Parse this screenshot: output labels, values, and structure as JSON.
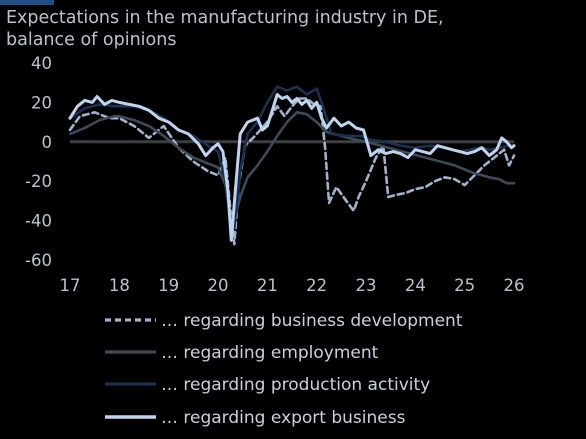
{
  "title_lines": [
    "Expectations in the manufacturing industry in DE,",
    "balance of opinions"
  ],
  "colors": {
    "background": "#000000",
    "zero_line": "#3a3f46",
    "text": "#b9c2ce",
    "accent": "#1f4f86"
  },
  "chart_data": {
    "type": "line",
    "title": "Expectations in the manufacturing industry in DE, balance of opinions",
    "xlabel": "",
    "ylabel": "",
    "xlim": [
      17,
      26
    ],
    "ylim": [
      -60,
      40
    ],
    "x_ticks": [
      "17",
      "18",
      "19",
      "20",
      "21",
      "22",
      "23",
      "24",
      "25",
      "26"
    ],
    "y_ticks": [
      "40",
      "20",
      "0",
      "-20",
      "-40",
      "-60"
    ],
    "grid": false,
    "legend_position": "bottom",
    "series": [
      {
        "name": "… regarding business development",
        "color": "#9fb3cc",
        "dash": "6 4",
        "width": 2.6,
        "x": [
          17.0,
          17.2,
          17.5,
          17.8,
          18.0,
          18.3,
          18.6,
          18.9,
          19.2,
          19.5,
          19.8,
          20.0,
          20.15,
          20.25,
          20.33,
          20.42,
          20.55,
          20.75,
          21.0,
          21.2,
          21.35,
          21.5,
          21.65,
          21.8,
          21.95,
          22.08,
          22.17,
          22.25,
          22.4,
          22.6,
          22.75,
          22.85,
          23.0,
          23.2,
          23.35,
          23.45,
          23.6,
          23.8,
          24.0,
          24.2,
          24.4,
          24.6,
          24.8,
          25.0,
          25.2,
          25.4,
          25.6,
          25.8,
          25.9,
          26.0
        ],
        "y": [
          6,
          13,
          15,
          12,
          12,
          8,
          2,
          8,
          -3,
          -10,
          -15,
          -17,
          -8,
          -34,
          -52,
          -22,
          -2,
          3,
          10,
          18,
          13,
          18,
          22,
          22,
          19,
          18,
          -3,
          -31,
          -23,
          -30,
          -35,
          -28,
          -20,
          -8,
          -2,
          -28,
          -27,
          -26,
          -24,
          -23,
          -20,
          -18,
          -19,
          -22,
          -17,
          -12,
          -8,
          -4,
          -12,
          -7
        ]
      },
      {
        "name": "… regarding employment",
        "color": "#3d4a58",
        "dash": "",
        "width": 2.6,
        "x": [
          17.0,
          17.3,
          17.6,
          17.9,
          18.0,
          18.3,
          18.6,
          18.9,
          19.2,
          19.5,
          19.8,
          20.0,
          20.15,
          20.25,
          20.33,
          20.45,
          20.6,
          20.8,
          21.0,
          21.2,
          21.4,
          21.6,
          21.8,
          22.0,
          22.2,
          22.5,
          22.8,
          23.0,
          23.3,
          23.6,
          23.9,
          24.2,
          24.5,
          24.8,
          25.0,
          25.2,
          25.5,
          25.7,
          25.85,
          26.0
        ],
        "y": [
          4,
          7,
          11,
          13,
          13,
          11,
          8,
          3,
          -3,
          -8,
          -11,
          -13,
          -22,
          -38,
          -40,
          -28,
          -18,
          -12,
          -5,
          3,
          10,
          15,
          14,
          10,
          5,
          3,
          1,
          0,
          -2,
          -4,
          -6,
          -8,
          -10,
          -12,
          -14,
          -16,
          -18,
          -19,
          -21,
          -21
        ]
      },
      {
        "name": "… regarding production activity",
        "color": "#1b3150",
        "dash": "",
        "width": 2.6,
        "x": [
          17.0,
          17.3,
          17.6,
          17.9,
          18.0,
          18.3,
          18.6,
          18.9,
          19.2,
          19.5,
          19.8,
          20.0,
          20.15,
          20.25,
          20.33,
          20.45,
          20.6,
          20.8,
          21.0,
          21.2,
          21.4,
          21.6,
          21.8,
          22.0,
          22.1,
          22.3,
          22.6,
          22.9,
          23.1,
          23.4,
          23.7,
          24.0,
          24.3,
          24.6,
          24.9,
          25.1,
          25.3,
          25.5,
          25.7,
          25.9,
          26.0
        ],
        "y": [
          12,
          17,
          19,
          18,
          18,
          18,
          16,
          12,
          6,
          3,
          -2,
          -5,
          -20,
          -40,
          -44,
          -15,
          4,
          10,
          20,
          28,
          26,
          28,
          24,
          27,
          20,
          4,
          3,
          3,
          1,
          0,
          -2,
          -3,
          -2,
          -3,
          -5,
          -4,
          -3,
          -4,
          -3,
          -2,
          -2
        ]
      },
      {
        "name": "… regarding export business",
        "color": "#bfd4ee",
        "dash": "",
        "width": 3.0,
        "x": [
          17.0,
          17.15,
          17.3,
          17.45,
          17.55,
          17.7,
          17.85,
          18.0,
          18.2,
          18.4,
          18.6,
          18.8,
          19.0,
          19.2,
          19.4,
          19.6,
          19.75,
          19.9,
          20.0,
          20.1,
          20.2,
          20.27,
          20.35,
          20.45,
          20.6,
          20.8,
          20.9,
          21.0,
          21.1,
          21.2,
          21.3,
          21.4,
          21.5,
          21.6,
          21.7,
          21.8,
          21.9,
          22.0,
          22.1,
          22.2,
          22.35,
          22.5,
          22.65,
          22.8,
          22.95,
          23.1,
          23.25,
          23.4,
          23.55,
          23.7,
          23.85,
          24.0,
          24.15,
          24.3,
          24.45,
          24.6,
          24.75,
          24.9,
          25.05,
          25.2,
          25.35,
          25.5,
          25.65,
          25.75,
          25.85,
          25.95,
          26.0
        ],
        "y": [
          12,
          18,
          21,
          20,
          23,
          19,
          21,
          20,
          19,
          18,
          16,
          12,
          10,
          6,
          4,
          -1,
          -7,
          -3,
          -1,
          -5,
          -25,
          -50,
          -25,
          4,
          10,
          12,
          6,
          8,
          16,
          24,
          22,
          23,
          20,
          22,
          19,
          21,
          17,
          20,
          12,
          7,
          12,
          8,
          10,
          7,
          6,
          -7,
          -4,
          -6,
          -5,
          -6,
          -8,
          -4,
          -5,
          -6,
          -2,
          -3,
          -4,
          -5,
          -6,
          -5,
          -3,
          -7,
          -4,
          2,
          0,
          -3,
          -2
        ]
      }
    ]
  }
}
